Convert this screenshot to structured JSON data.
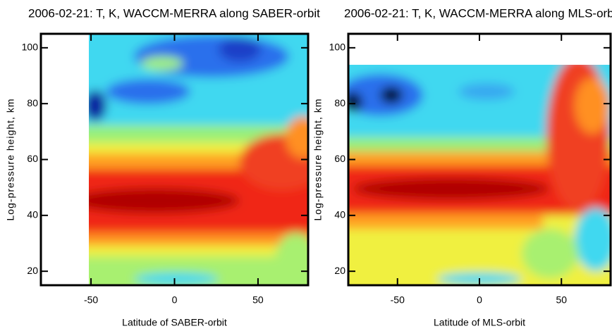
{
  "chart_data": [
    {
      "type": "contour",
      "title": "2006-02-21:  T, K, WACCM-MERRA along SABER-orbit",
      "xlabel": "Latitude of SABER-orbit",
      "ylabel": "Log-pressure height, km",
      "xlim": [
        -80,
        80
      ],
      "ylim": [
        15,
        105
      ],
      "xticks": [
        -50,
        0,
        50
      ],
      "yticks": [
        20,
        40,
        60,
        80,
        100
      ]
    },
    {
      "type": "contour",
      "title": "2006-02-21:  T, K, WACCM-MERRA along MLS-orbit",
      "xlabel": "Latitude of MLS-orbit",
      "ylabel": "Log-pressure height, km",
      "xlim": [
        -80,
        80
      ],
      "ylim": [
        15,
        105
      ],
      "xticks": [
        -50,
        0,
        50
      ],
      "yticks": [
        20,
        40,
        60,
        80,
        100
      ]
    }
  ]
}
